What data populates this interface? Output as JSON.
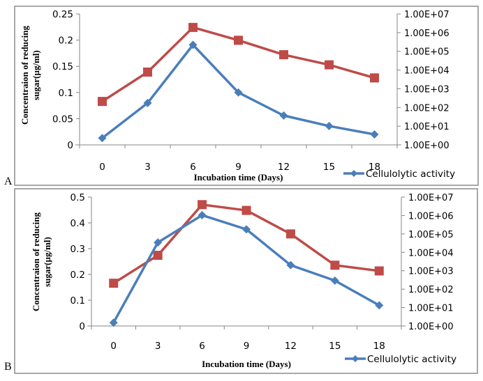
{
  "chart_data": [
    {
      "panel_label": "A",
      "type": "line",
      "title": "",
      "xlabel": "Incubation time (Days)",
      "ylabel_lines": [
        "Concentraion of reducing",
        "sugar(µg/ml)"
      ],
      "categories": [
        "0",
        "3",
        "6",
        "9",
        "12",
        "15",
        "18"
      ],
      "ylim": [
        0,
        0.25
      ],
      "yticks": [
        "0",
        "0.05",
        "0.1",
        "0.15",
        "0.2",
        "0.25"
      ],
      "y2_scale": "log",
      "y2lim": [
        1,
        10000000
      ],
      "y2ticks": [
        "1.00E+00",
        "1.00E+01",
        "1.00E+02",
        "1.00E+03",
        "1.00E+04",
        "1.00E+05",
        "1.00E+06",
        "1.00E+07"
      ],
      "grid": false,
      "legend_position": "bottom-right",
      "series": [
        {
          "name": "Cellulolytic activity",
          "axis": "left",
          "marker": "diamond",
          "color": "#4a7ebb",
          "values": [
            0.013,
            0.08,
            0.191,
            0.1,
            0.056,
            0.036,
            0.02
          ],
          "in_legend": true
        },
        {
          "name": "",
          "axis": "right",
          "marker": "square",
          "color": "#be4b48",
          "values": [
            210,
            7800,
            1900000,
            390000,
            66000,
            19000,
            3800
          ],
          "in_legend": false
        }
      ]
    },
    {
      "panel_label": "B",
      "type": "line",
      "title": "",
      "xlabel": "Incubation time (Days)",
      "ylabel_lines": [
        "Concentraion of reducing",
        "sugar(µg/ml)"
      ],
      "categories": [
        "0",
        "3",
        "6",
        "9",
        "12",
        "15",
        "18"
      ],
      "ylim": [
        0,
        0.5
      ],
      "yticks": [
        "0",
        "0.1",
        "0.2",
        "0.3",
        "0.4",
        "0.5"
      ],
      "y2_scale": "log",
      "y2lim": [
        1,
        10000000
      ],
      "y2ticks": [
        "1.00E+00",
        "1.00E+01",
        "1.00E+02",
        "1.00E+03",
        "1.00E+04",
        "1.00E+05",
        "1.00E+06",
        "1.00E+07"
      ],
      "grid": false,
      "legend_position": "bottom-right",
      "series": [
        {
          "name": "Cellulolytic activity",
          "axis": "left",
          "marker": "diamond",
          "color": "#4a7ebb",
          "values": [
            0.013,
            0.324,
            0.43,
            0.375,
            0.236,
            0.176,
            0.08
          ],
          "in_legend": true
        },
        {
          "name": "",
          "axis": "right",
          "marker": "square",
          "color": "#be4b48",
          "values": [
            210,
            6900,
            3900000,
            1900000,
            100000,
            2000,
            980
          ],
          "in_legend": false
        }
      ]
    }
  ]
}
